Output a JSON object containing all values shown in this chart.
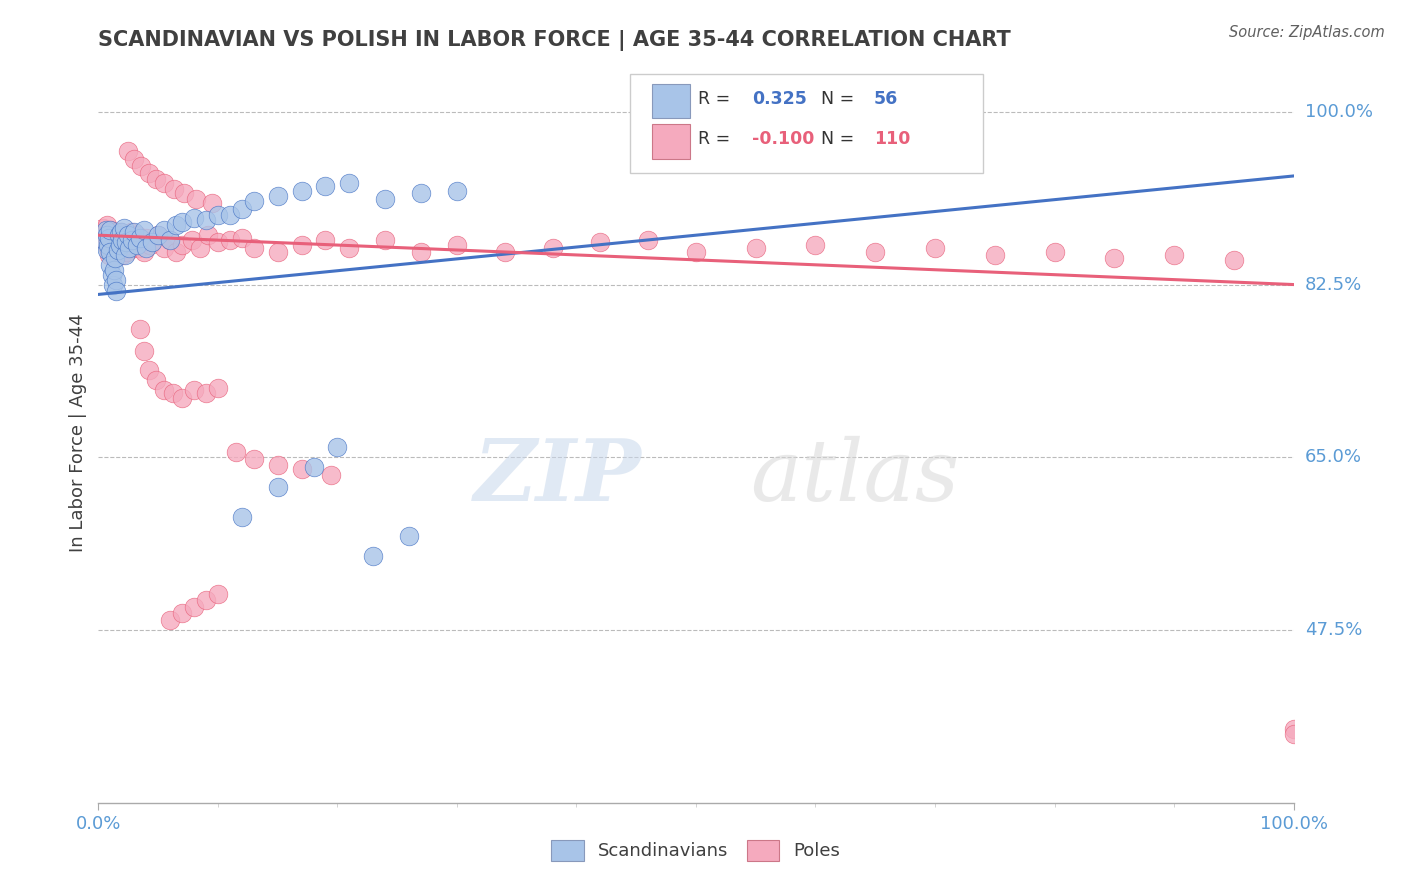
{
  "title": "SCANDINAVIAN VS POLISH IN LABOR FORCE | AGE 35-44 CORRELATION CHART",
  "source": "Source: ZipAtlas.com",
  "ylabel": "In Labor Force | Age 35-44",
  "xlim": [
    0.0,
    1.0
  ],
  "ylim": [
    0.3,
    1.05
  ],
  "ytick_vals": [
    0.475,
    0.65,
    0.825,
    1.0
  ],
  "ytick_labels": [
    "47.5%",
    "65.0%",
    "82.5%",
    "100.0%"
  ],
  "legend_r_scand": "0.325",
  "legend_n_scand": "56",
  "legend_r_poles": "-0.100",
  "legend_n_poles": "110",
  "scand_color": "#a8c4e8",
  "poles_color": "#f5aabe",
  "scand_line_color": "#4472c4",
  "poles_line_color": "#e8607a",
  "background_color": "#ffffff",
  "axis_color": "#5b9bd5",
  "title_color": "#404040",
  "scand_trend_x": [
    0.0,
    1.0
  ],
  "scand_trend_y": [
    0.815,
    0.935
  ],
  "poles_trend_x": [
    0.0,
    1.0
  ],
  "poles_trend_y": [
    0.875,
    0.825
  ],
  "scandinavians_x": [
    0.005,
    0.006,
    0.007,
    0.007,
    0.008,
    0.009,
    0.01,
    0.01,
    0.01,
    0.011,
    0.012,
    0.013,
    0.014,
    0.015,
    0.015,
    0.016,
    0.017,
    0.018,
    0.019,
    0.02,
    0.021,
    0.022,
    0.023,
    0.025,
    0.026,
    0.028,
    0.03,
    0.032,
    0.035,
    0.038,
    0.04,
    0.045,
    0.05,
    0.055,
    0.06,
    0.065,
    0.07,
    0.08,
    0.09,
    0.1,
    0.11,
    0.12,
    0.13,
    0.15,
    0.17,
    0.19,
    0.21,
    0.24,
    0.27,
    0.3,
    0.12,
    0.15,
    0.18,
    0.2,
    0.23,
    0.26
  ],
  "scandinavians_y": [
    0.87,
    0.88,
    0.86,
    0.875,
    0.865,
    0.872,
    0.88,
    0.858,
    0.845,
    0.835,
    0.825,
    0.84,
    0.852,
    0.83,
    0.818,
    0.86,
    0.875,
    0.865,
    0.878,
    0.87,
    0.882,
    0.855,
    0.868,
    0.875,
    0.862,
    0.87,
    0.878,
    0.865,
    0.872,
    0.88,
    0.862,
    0.868,
    0.875,
    0.88,
    0.87,
    0.885,
    0.888,
    0.892,
    0.89,
    0.895,
    0.895,
    0.902,
    0.91,
    0.915,
    0.92,
    0.925,
    0.928,
    0.912,
    0.918,
    0.92,
    0.59,
    0.62,
    0.64,
    0.66,
    0.55,
    0.57
  ],
  "poles_x": [
    0.004,
    0.005,
    0.006,
    0.007,
    0.007,
    0.008,
    0.008,
    0.009,
    0.009,
    0.01,
    0.01,
    0.01,
    0.011,
    0.011,
    0.012,
    0.012,
    0.013,
    0.013,
    0.014,
    0.014,
    0.015,
    0.015,
    0.016,
    0.016,
    0.017,
    0.018,
    0.019,
    0.02,
    0.02,
    0.021,
    0.022,
    0.023,
    0.024,
    0.025,
    0.026,
    0.027,
    0.028,
    0.03,
    0.032,
    0.034,
    0.036,
    0.038,
    0.04,
    0.043,
    0.046,
    0.05,
    0.055,
    0.06,
    0.065,
    0.07,
    0.078,
    0.085,
    0.092,
    0.1,
    0.11,
    0.12,
    0.13,
    0.15,
    0.17,
    0.19,
    0.21,
    0.24,
    0.27,
    0.3,
    0.34,
    0.38,
    0.42,
    0.46,
    0.5,
    0.55,
    0.6,
    0.65,
    0.7,
    0.75,
    0.8,
    0.85,
    0.9,
    0.95,
    1.0,
    1.0,
    0.035,
    0.038,
    0.042,
    0.048,
    0.055,
    0.062,
    0.07,
    0.08,
    0.09,
    0.1,
    0.115,
    0.13,
    0.15,
    0.17,
    0.195,
    0.06,
    0.07,
    0.08,
    0.09,
    0.1,
    0.025,
    0.03,
    0.036,
    0.042,
    0.048,
    0.055,
    0.063,
    0.072,
    0.082,
    0.095
  ],
  "poles_y": [
    0.882,
    0.875,
    0.868,
    0.885,
    0.872,
    0.878,
    0.862,
    0.87,
    0.855,
    0.88,
    0.872,
    0.865,
    0.878,
    0.858,
    0.872,
    0.862,
    0.87,
    0.855,
    0.878,
    0.865,
    0.872,
    0.858,
    0.87,
    0.862,
    0.875,
    0.865,
    0.878,
    0.87,
    0.855,
    0.872,
    0.862,
    0.875,
    0.858,
    0.87,
    0.865,
    0.878,
    0.862,
    0.87,
    0.875,
    0.862,
    0.87,
    0.858,
    0.872,
    0.865,
    0.87,
    0.875,
    0.862,
    0.87,
    0.858,
    0.865,
    0.87,
    0.862,
    0.875,
    0.868,
    0.87,
    0.872,
    0.862,
    0.858,
    0.865,
    0.87,
    0.862,
    0.87,
    0.858,
    0.865,
    0.858,
    0.862,
    0.868,
    0.87,
    0.858,
    0.862,
    0.865,
    0.858,
    0.862,
    0.855,
    0.858,
    0.852,
    0.855,
    0.85,
    0.375,
    0.37,
    0.78,
    0.758,
    0.738,
    0.728,
    0.718,
    0.715,
    0.71,
    0.718,
    0.715,
    0.72,
    0.655,
    0.648,
    0.642,
    0.638,
    0.632,
    0.485,
    0.492,
    0.498,
    0.505,
    0.512,
    0.96,
    0.952,
    0.945,
    0.938,
    0.932,
    0.928,
    0.922,
    0.918,
    0.912,
    0.908
  ]
}
